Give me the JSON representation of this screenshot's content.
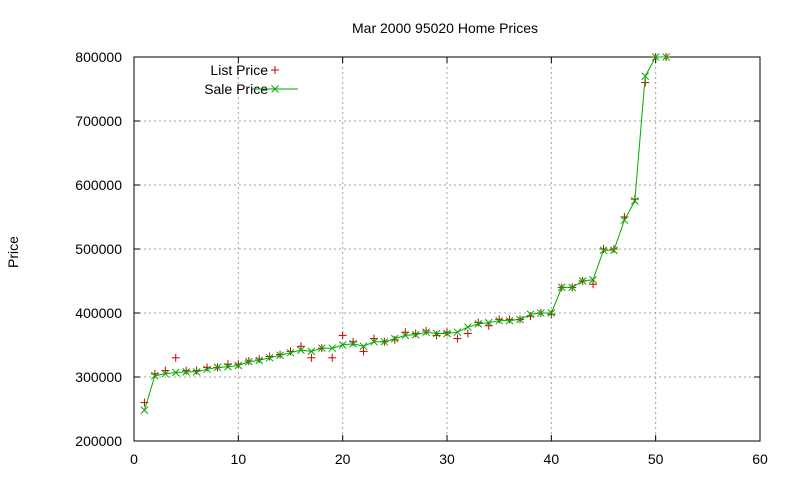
{
  "chart_data": {
    "type": "line",
    "title": "Mar 2000 95020 Home Prices",
    "xlabel": "",
    "ylabel": "Price",
    "xlim": [
      0,
      60
    ],
    "ylim": [
      200000,
      800000
    ],
    "x_ticks": [
      0,
      10,
      20,
      30,
      40,
      50,
      60
    ],
    "y_ticks": [
      200000,
      300000,
      400000,
      500000,
      600000,
      700000,
      800000
    ],
    "grid": true,
    "legend_position": "top-left",
    "series": [
      {
        "name": "List Price",
        "style": "points",
        "marker": "plus",
        "color": "#cc0000",
        "x": [
          1,
          2,
          3,
          4,
          5,
          6,
          7,
          8,
          9,
          10,
          11,
          12,
          13,
          14,
          15,
          16,
          17,
          18,
          19,
          20,
          21,
          22,
          23,
          24,
          25,
          26,
          27,
          28,
          29,
          30,
          31,
          32,
          33,
          34,
          35,
          36,
          37,
          38,
          39,
          40,
          41,
          42,
          43,
          44,
          45,
          46,
          47,
          48,
          49,
          50,
          51
        ],
        "y": [
          260000,
          305000,
          310000,
          330000,
          310000,
          310000,
          315000,
          315000,
          320000,
          320000,
          325000,
          328000,
          332000,
          335000,
          340000,
          348000,
          330000,
          345000,
          330000,
          365000,
          355000,
          340000,
          360000,
          355000,
          358000,
          370000,
          368000,
          372000,
          365000,
          370000,
          360000,
          368000,
          385000,
          380000,
          390000,
          390000,
          390000,
          395000,
          400000,
          398000,
          440000,
          440000,
          450000,
          445000,
          500000,
          500000,
          550000,
          578000,
          760000,
          800000,
          800000
        ]
      },
      {
        "name": "Sale Price",
        "style": "linespoints",
        "marker": "cross",
        "color": "#00aa00",
        "x": [
          1,
          2,
          3,
          4,
          5,
          6,
          7,
          8,
          9,
          10,
          11,
          12,
          13,
          14,
          15,
          16,
          17,
          18,
          19,
          20,
          21,
          22,
          23,
          24,
          25,
          26,
          27,
          28,
          29,
          30,
          31,
          32,
          33,
          34,
          35,
          36,
          37,
          38,
          39,
          40,
          41,
          42,
          43,
          44,
          45,
          46,
          47,
          48,
          49,
          50,
          51
        ],
        "y": [
          248000,
          302000,
          305000,
          307000,
          308000,
          308000,
          312000,
          315000,
          316000,
          318000,
          324000,
          326000,
          330000,
          334000,
          338000,
          342000,
          340000,
          345000,
          345000,
          350000,
          352000,
          348000,
          355000,
          355000,
          360000,
          365000,
          366000,
          370000,
          368000,
          368000,
          370000,
          378000,
          383000,
          385000,
          388000,
          388000,
          390000,
          398000,
          400000,
          400000,
          440000,
          440000,
          450000,
          452000,
          498000,
          498000,
          545000,
          575000,
          770000,
          800000,
          800000
        ]
      }
    ]
  }
}
